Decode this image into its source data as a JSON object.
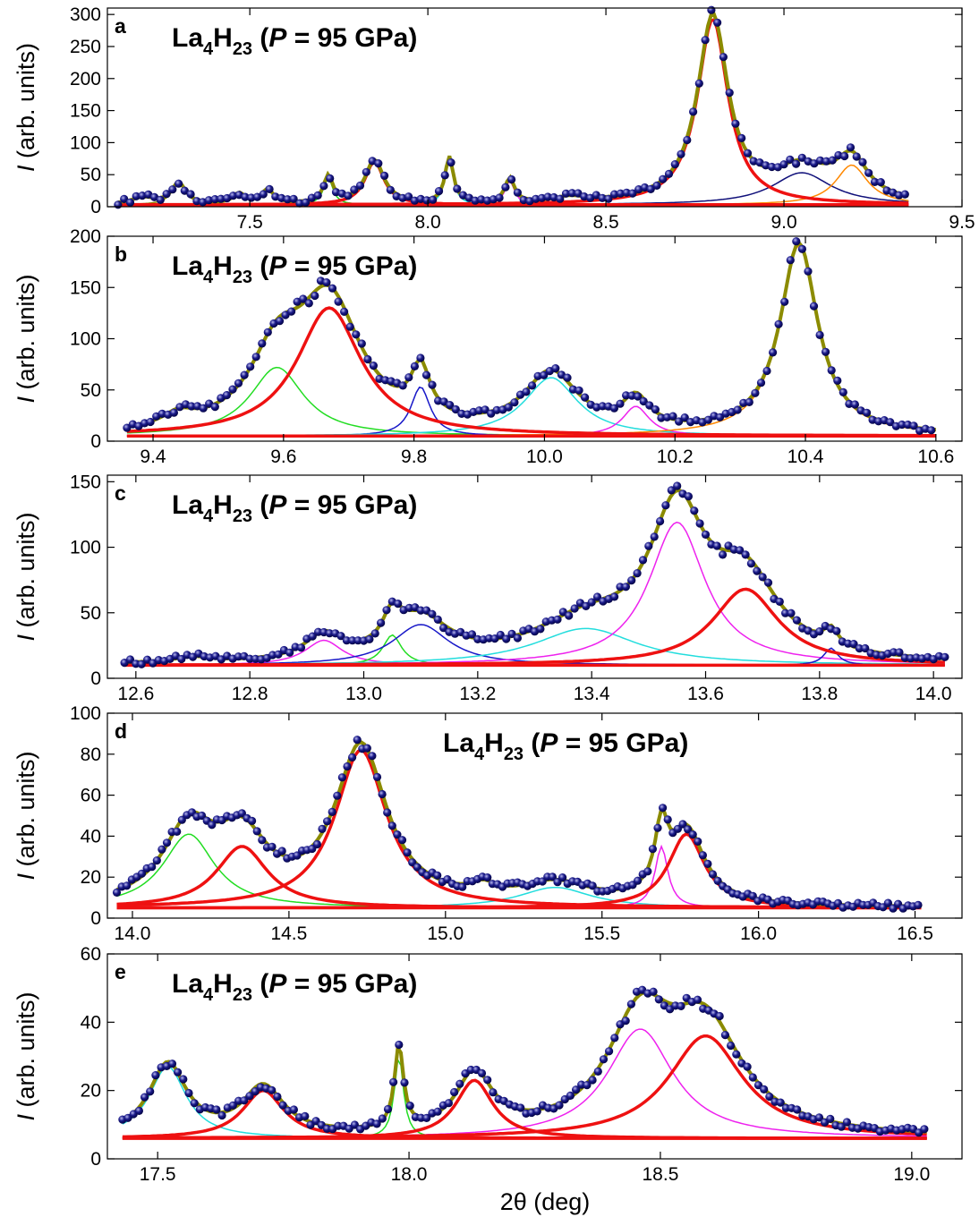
{
  "figure": {
    "xlabel": "2θ (deg)",
    "ylabel_letter": "I",
    "ylabel_rest": " (arb. units)"
  },
  "chart_data": [
    {
      "type": "scatter",
      "panel": "a",
      "title": {
        "base": "La",
        "sub1": "4",
        "mid": "H",
        "sub2": "23",
        "pre": " (",
        "ital": "P",
        "post": " = 95 GPa)"
      },
      "title_position": "top-left",
      "xlim": [
        7.1,
        9.5
      ],
      "ylim": [
        0,
        310
      ],
      "xticks": [
        7.5,
        8.0,
        8.5,
        9.0,
        9.5
      ],
      "xtick_labels": [
        "7.5",
        "8.0",
        "8.5",
        "9.0",
        "9.5"
      ],
      "yticks": [
        0,
        50,
        100,
        150,
        200,
        250,
        300
      ],
      "ytick_labels": [
        "0",
        "50",
        "100",
        "150",
        "200",
        "250",
        "300"
      ],
      "data_range": [
        7.13,
        9.35
      ],
      "data_step": 0.017,
      "baseline": 3,
      "peaks": [
        {
          "x0": 7.3,
          "h": 33,
          "w": 0.024,
          "color": "#8b8b00",
          "lw": 1.5
        },
        {
          "x0": 7.72,
          "h": 42,
          "w": 0.016,
          "color": "#22dd22",
          "lw": 1.5
        },
        {
          "x0": 7.85,
          "h": 68,
          "w": 0.032,
          "color": "#ee1111",
          "lw": 3.5
        },
        {
          "x0": 8.06,
          "h": 72,
          "w": 0.014,
          "color": "#22dddd",
          "lw": 1.5
        },
        {
          "x0": 8.23,
          "h": 38,
          "w": 0.016,
          "color": "#ee22ee",
          "lw": 1.5
        },
        {
          "x0": 8.8,
          "h": 290,
          "w": 0.052,
          "color": "#ee1111",
          "lw": 3.5
        },
        {
          "x0": 9.05,
          "h": 50,
          "w": 0.1,
          "color": "#10107a",
          "lw": 1.5
        },
        {
          "x0": 9.19,
          "h": 62,
          "w": 0.055,
          "color": "#ff8800",
          "lw": 1.5
        }
      ],
      "extra": [
        {
          "x0": 7.55,
          "h": 22,
          "w": 0.02
        },
        {
          "x0": 7.47,
          "h": 16,
          "w": 0.02
        },
        {
          "x0": 7.2,
          "h": 10,
          "w": 0.04
        },
        {
          "x0": 8.4,
          "h": 8,
          "w": 0.05
        }
      ]
    },
    {
      "type": "scatter",
      "panel": "b",
      "title": {
        "base": "La",
        "sub1": "4",
        "mid": "H",
        "sub2": "23",
        "pre": " (",
        "ital": "P",
        "post": " = 95 GPa)"
      },
      "title_position": "top-left",
      "xlim": [
        9.33,
        10.64
      ],
      "ylim": [
        0,
        200
      ],
      "xticks": [
        9.4,
        9.6,
        9.8,
        10.0,
        10.2,
        10.4,
        10.6
      ],
      "xtick_labels": [
        "9.4",
        "9.6",
        "9.8",
        "10.0",
        "10.2",
        "10.4",
        "10.6"
      ],
      "yticks": [
        0,
        50,
        100,
        150,
        200
      ],
      "ytick_labels": [
        "0",
        "50",
        "100",
        "150",
        "200"
      ],
      "data_range": [
        9.36,
        10.6
      ],
      "data_step": 0.009,
      "baseline": 5,
      "peaks": [
        {
          "x0": 9.59,
          "h": 67,
          "w": 0.05,
          "color": "#22dd22",
          "lw": 1.5
        },
        {
          "x0": 9.67,
          "h": 125,
          "w": 0.06,
          "color": "#ee1111",
          "lw": 3.5
        },
        {
          "x0": 9.81,
          "h": 48,
          "w": 0.018,
          "color": "#1818c8",
          "lw": 1.5
        },
        {
          "x0": 10.01,
          "h": 57,
          "w": 0.05,
          "color": "#22dddd",
          "lw": 1.5
        },
        {
          "x0": 10.14,
          "h": 29,
          "w": 0.025,
          "color": "#ee22ee",
          "lw": 1.5
        },
        {
          "x0": 10.39,
          "h": 186,
          "w": 0.035,
          "color": "#ff8800",
          "lw": 1.5
        }
      ],
      "extra": [
        {
          "x0": 9.44,
          "h": 12,
          "w": 0.03
        }
      ]
    },
    {
      "type": "scatter",
      "panel": "c",
      "title": {
        "base": "La",
        "sub1": "4",
        "mid": "H",
        "sub2": "23",
        "pre": " (",
        "ital": "P",
        "post": " = 95 GPa)"
      },
      "title_position": "top-left",
      "xlim": [
        12.55,
        14.05
      ],
      "ylim": [
        0,
        155
      ],
      "xticks": [
        12.6,
        12.8,
        13.0,
        13.2,
        13.4,
        13.6,
        13.8,
        14.0
      ],
      "xtick_labels": [
        "12.6",
        "12.8",
        "13.0",
        "13.2",
        "13.4",
        "13.6",
        "13.8",
        "14.0"
      ],
      "yticks": [
        0,
        50,
        100,
        150
      ],
      "ytick_labels": [
        "0",
        "50",
        "100",
        "150"
      ],
      "data_range": [
        12.58,
        14.02
      ],
      "data_step": 0.01,
      "baseline": 10,
      "peaks": [
        {
          "x0": 12.93,
          "h": 19,
          "w": 0.04,
          "color": "#ee22ee",
          "lw": 1.5
        },
        {
          "x0": 13.05,
          "h": 23,
          "w": 0.02,
          "color": "#22dd22",
          "lw": 1.5
        },
        {
          "x0": 13.1,
          "h": 31,
          "w": 0.06,
          "color": "#1818c8",
          "lw": 1.5
        },
        {
          "x0": 13.39,
          "h": 28,
          "w": 0.11,
          "color": "#22dddd",
          "lw": 1.5
        },
        {
          "x0": 13.55,
          "h": 109,
          "w": 0.06,
          "color": "#ee22ee",
          "lw": 1.5
        },
        {
          "x0": 13.67,
          "h": 58,
          "w": 0.07,
          "color": "#ee1111",
          "lw": 3.5
        },
        {
          "x0": 13.82,
          "h": 13,
          "w": 0.015,
          "color": "#1818c8",
          "lw": 1.5
        }
      ],
      "extra": [
        {
          "x0": 12.7,
          "h": 4,
          "w": 0.04
        }
      ]
    },
    {
      "type": "scatter",
      "panel": "d",
      "title": {
        "base": "La",
        "sub1": "4",
        "mid": "H",
        "sub2": "23",
        "pre": " (",
        "ital": "P",
        "post": " = 95 GPa)"
      },
      "title_position": "top-center",
      "xlim": [
        13.92,
        16.65
      ],
      "ylim": [
        0,
        100
      ],
      "xticks": [
        14.0,
        14.5,
        15.0,
        15.5,
        16.0,
        16.5
      ],
      "xtick_labels": [
        "14.0",
        "14.5",
        "15.0",
        "15.5",
        "16.0",
        "16.5"
      ],
      "yticks": [
        0,
        20,
        40,
        60,
        80,
        100
      ],
      "ytick_labels": [
        "0",
        "20",
        "40",
        "60",
        "80",
        "100"
      ],
      "data_range": [
        13.95,
        16.52
      ],
      "data_step": 0.016,
      "baseline": 5,
      "peaks": [
        {
          "x0": 14.18,
          "h": 36,
          "w": 0.1,
          "color": "#22dd22",
          "lw": 1.5
        },
        {
          "x0": 14.35,
          "h": 30,
          "w": 0.1,
          "color": "#ee1111",
          "lw": 3.5
        },
        {
          "x0": 14.73,
          "h": 77,
          "w": 0.1,
          "color": "#ee1111",
          "lw": 3.5
        },
        {
          "x0": 15.35,
          "h": 10,
          "w": 0.14,
          "color": "#22dddd",
          "lw": 1.5
        },
        {
          "x0": 15.69,
          "h": 30,
          "w": 0.025,
          "color": "#ee22ee",
          "lw": 1.5
        },
        {
          "x0": 15.77,
          "h": 36,
          "w": 0.07,
          "color": "#ee1111",
          "lw": 3.5
        }
      ],
      "extra": [
        {
          "x0": 15.12,
          "h": 5,
          "w": 0.05
        }
      ]
    },
    {
      "type": "scatter",
      "panel": "e",
      "title": {
        "base": "La",
        "sub1": "4",
        "mid": "H",
        "sub2": "23",
        "pre": " (",
        "ital": "P",
        "post": " = 95 GPa)"
      },
      "title_position": "top-left",
      "xlim": [
        17.4,
        19.1
      ],
      "ylim": [
        0,
        60
      ],
      "xticks": [
        17.5,
        18.0,
        18.5,
        19.0
      ],
      "xtick_labels": [
        "17.5",
        "18.0",
        "18.5",
        "19.0"
      ],
      "yticks": [
        0,
        20,
        40,
        60
      ],
      "ytick_labels": [
        "0",
        "20",
        "40",
        "60"
      ],
      "data_range": [
        17.43,
        19.03
      ],
      "data_step": 0.011,
      "baseline": 6,
      "peaks": [
        {
          "x0": 17.52,
          "h": 21,
          "w": 0.045,
          "color": "#22dddd",
          "lw": 1.5
        },
        {
          "x0": 17.71,
          "h": 14,
          "w": 0.05,
          "color": "#ee1111",
          "lw": 3.5
        },
        {
          "x0": 17.98,
          "h": 24,
          "w": 0.011,
          "color": "#22dd22",
          "lw": 1.5
        },
        {
          "x0": 18.13,
          "h": 17,
          "w": 0.045,
          "color": "#ee1111",
          "lw": 3.5
        },
        {
          "x0": 18.46,
          "h": 32,
          "w": 0.08,
          "color": "#ee22ee",
          "lw": 1.5
        },
        {
          "x0": 18.59,
          "h": 30,
          "w": 0.09,
          "color": "#ee1111",
          "lw": 3.5
        }
      ],
      "extra": []
    }
  ],
  "colors": {
    "total_fit": "#8b8b00",
    "points_fill": "#1a1a8a",
    "points_edge": "#00003a",
    "points_highlight": "#b9b9ee",
    "axes": "#000000"
  }
}
